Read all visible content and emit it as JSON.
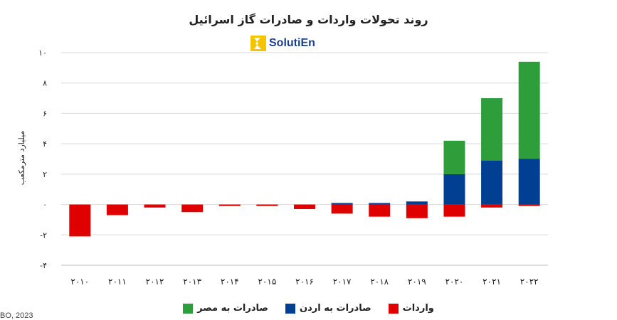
{
  "chart_data": {
    "type": "bar",
    "stacked": true,
    "title": "روند تحولات واردات و صادرات گاز اسرائیل",
    "ylabel": "میلیارد مترمکعب",
    "xlabel": "",
    "ylim": [
      -4,
      10
    ],
    "yticks": [
      -4,
      -2,
      0,
      2,
      4,
      6,
      8,
      10
    ],
    "ytick_labels": [
      "-۴",
      "-۲",
      "۰",
      "۲",
      "۴",
      "۶",
      "۸",
      "۱۰"
    ],
    "grid": true,
    "legend_position": "bottom",
    "categories": [
      "۲۰۱۰",
      "۲۰۱۱",
      "۲۰۱۲",
      "۲۰۱۳",
      "۲۰۱۴",
      "۲۰۱۵",
      "۲۰۱۶",
      "۲۰۱۷",
      "۲۰۱۸",
      "۲۰۱۹",
      "۲۰۲۰",
      "۲۰۲۱",
      "۲۰۲۲"
    ],
    "series": [
      {
        "name": "واردات",
        "color": "#e00000",
        "values": [
          -2.1,
          -0.7,
          -0.2,
          -0.5,
          -0.1,
          -0.1,
          -0.3,
          -0.6,
          -0.8,
          -0.9,
          -0.8,
          -0.2,
          -0.1
        ]
      },
      {
        "name": "صادرات به اردن",
        "color": "#003f91",
        "values": [
          0,
          0,
          0,
          0,
          0,
          0,
          0,
          0.1,
          0.1,
          0.2,
          2.0,
          2.9,
          3.0
        ]
      },
      {
        "name": "صادرات به مصر",
        "color": "#2e9e3a",
        "values": [
          0,
          0,
          0,
          0,
          0,
          0,
          0,
          0,
          0,
          0,
          2.2,
          4.1,
          6.4
        ]
      }
    ]
  },
  "logo": {
    "text": "SolutiEn",
    "mark_color": "#f5c400"
  },
  "source": "BO, 2023"
}
